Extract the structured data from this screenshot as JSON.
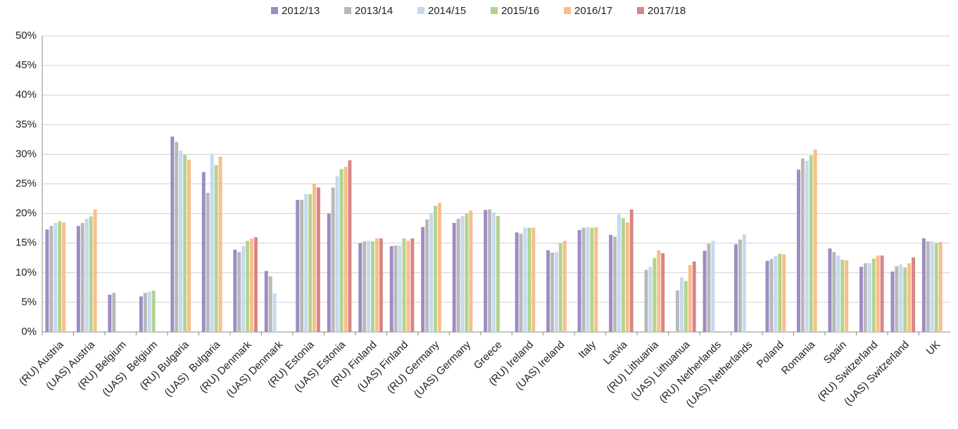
{
  "chart_data": {
    "type": "bar",
    "categories": [
      "(RU) Austria",
      "(UAS) Austria",
      "(RU) Belgium",
      "(UAS)  Belgium",
      "(RU) Bulgaria",
      "(UAS)  Bulgaria",
      "(RU) Denmark",
      "(UAS) Denmark",
      "(RU) Estonia",
      "(UAS) Estonia",
      "(RU) Finland",
      "(UAS) Finland",
      "(RU) Germany",
      "(UAS) Germany",
      "Greece",
      "(RU) Ireland",
      "(UAS) Ireland",
      "Italy",
      "Latvia",
      "(RU) Lithuania",
      "(UAS) Lithuanua",
      "(RU) Netherlands",
      "(UAS) Netherlands",
      "Poland",
      "Romania",
      "Spain",
      "(RU) Switzerland",
      "(UAS) Switzerland",
      "UK"
    ],
    "series": [
      {
        "name": "2012/13",
        "color": "#9d8cc3",
        "values": [
          17.3,
          17.9,
          6.3,
          6.0,
          33.0,
          27.0,
          13.9,
          10.3,
          22.3,
          20.0,
          15.0,
          14.5,
          17.7,
          18.4,
          20.6,
          16.8,
          13.8,
          17.2,
          16.4,
          null,
          null,
          13.7,
          14.8,
          12.0,
          27.4,
          14.1,
          11.0,
          10.2,
          15.8
        ]
      },
      {
        "name": "2013/14",
        "color": "#b9b9b9",
        "values": [
          17.9,
          18.4,
          6.6,
          6.6,
          32.1,
          23.5,
          13.5,
          9.4,
          22.3,
          24.4,
          15.3,
          14.6,
          19.0,
          19.1,
          20.7,
          16.6,
          13.4,
          17.6,
          16.1,
          10.5,
          7.0,
          14.9,
          15.6,
          12.3,
          29.3,
          13.5,
          11.6,
          11.1,
          15.3
        ]
      },
      {
        "name": "2014/15",
        "color": "#c6d9f0",
        "values": [
          18.4,
          19.1,
          null,
          6.8,
          30.6,
          30.0,
          14.5,
          6.5,
          23.3,
          26.3,
          15.4,
          14.6,
          20.1,
          19.6,
          20.2,
          17.6,
          13.5,
          17.7,
          19.9,
          11.0,
          9.2,
          15.4,
          16.5,
          12.8,
          28.9,
          12.9,
          11.6,
          11.4,
          15.3
        ]
      },
      {
        "name": "2015/16",
        "color": "#b3d38c",
        "values": [
          18.7,
          19.5,
          null,
          7.0,
          29.9,
          28.2,
          15.4,
          null,
          23.3,
          27.5,
          15.3,
          15.8,
          21.3,
          20.0,
          19.6,
          17.6,
          15.0,
          17.6,
          19.2,
          12.5,
          8.6,
          null,
          null,
          13.2,
          29.8,
          12.2,
          12.4,
          10.9,
          15.0
        ]
      },
      {
        "name": "2016/17",
        "color": "#f8be8a",
        "values": [
          18.5,
          20.7,
          null,
          null,
          29.1,
          29.6,
          15.8,
          null,
          25.0,
          27.9,
          15.8,
          15.4,
          21.8,
          20.5,
          null,
          17.6,
          15.4,
          17.7,
          18.5,
          13.8,
          11.3,
          null,
          null,
          13.1,
          30.8,
          12.1,
          12.9,
          11.6,
          15.2
        ]
      },
      {
        "name": "2017/18",
        "color": "#d98585",
        "values": [
          null,
          null,
          null,
          null,
          null,
          null,
          16.0,
          null,
          24.4,
          29.0,
          15.8,
          15.8,
          null,
          null,
          null,
          null,
          null,
          null,
          20.7,
          13.3,
          11.9,
          null,
          null,
          null,
          null,
          null,
          12.9,
          12.6,
          null
        ]
      }
    ],
    "ylim": [
      0,
      50
    ],
    "yticks": [
      {
        "value": 0,
        "label": "0%"
      },
      {
        "value": 5,
        "label": "5%"
      },
      {
        "value": 10,
        "label": "10%"
      },
      {
        "value": 15,
        "label": "15%"
      },
      {
        "value": 20,
        "label": "20%"
      },
      {
        "value": 25,
        "label": "25%"
      },
      {
        "value": 30,
        "label": "30%"
      },
      {
        "value": 35,
        "label": "35%"
      },
      {
        "value": 40,
        "label": "40%"
      },
      {
        "value": 45,
        "label": "45%"
      },
      {
        "value": 50,
        "label": "50%"
      }
    ],
    "grid": true,
    "legend": "top"
  }
}
